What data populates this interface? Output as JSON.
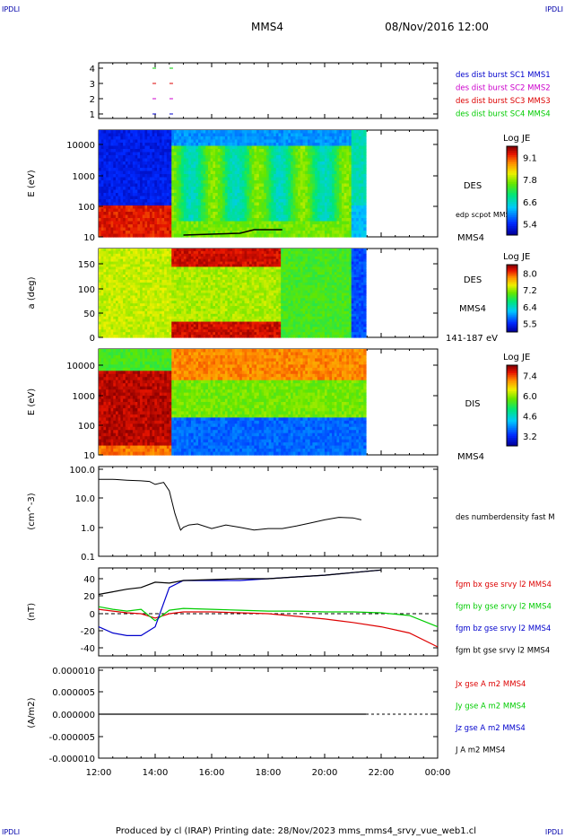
{
  "corner": {
    "tl": "IPDLI",
    "tr": "IPDLI",
    "bl": "IPDLI",
    "br": "IPDLI"
  },
  "header": {
    "spacecraft": "MMS4",
    "date": "08/Nov/2016 12:00"
  },
  "footer": "Produced by cl (IRAP)   Printing date: 28/Nov/2023   mms_mms4_srvy_vue_web1.cl",
  "time_axis": {
    "ticks": [
      "12:00",
      "14:00",
      "16:00",
      "18:00",
      "20:00",
      "22:00",
      "00:00"
    ]
  },
  "colors": {
    "blue": "#0000cc",
    "magenta": "#cc00cc",
    "red": "#dd0000",
    "green": "#00cc00",
    "black": "#000000",
    "dashed": "#000000"
  },
  "chart_data": [
    {
      "type": "scatter",
      "id": "burst",
      "yticks": [
        "4",
        "3",
        "2",
        "1"
      ],
      "legend": [
        {
          "name": "des dist burst SC1 MMS1",
          "color": "#0000cc"
        },
        {
          "name": "des dist burst SC2 MMS2",
          "color": "#cc00cc"
        },
        {
          "name": "des dist burst SC3 MMS3",
          "color": "#dd0000"
        },
        {
          "name": "des dist burst SC4 MMS4",
          "color": "#00cc00"
        }
      ],
      "marks": [
        {
          "sc": 4,
          "t": [
            13.97,
            14.57
          ],
          "color": "#00cc00"
        },
        {
          "sc": 3,
          "t": [
            13.97,
            14.57
          ],
          "color": "#dd0000"
        },
        {
          "sc": 2,
          "t": [
            13.97,
            14.57
          ],
          "color": "#cc00cc"
        },
        {
          "sc": 1,
          "t": [
            13.97,
            14.57
          ],
          "color": "#0000cc"
        }
      ]
    },
    {
      "type": "heatmap",
      "id": "des_energy",
      "ylabel": "E (eV)",
      "yticks": [
        "10000",
        "1000",
        "100",
        "10"
      ],
      "right_label": "DES",
      "overlay_label": "edp scpot MMS4",
      "bottom_label": "MMS4",
      "colorbar": {
        "title": "Log JE",
        "ticks": [
          "9.1",
          "7.8",
          "6.6",
          "5.4"
        ]
      }
    },
    {
      "type": "heatmap",
      "id": "des_pitch",
      "ylabel": "a (deg)",
      "yticks": [
        "150",
        "100",
        "50",
        "0"
      ],
      "right_label": "DES",
      "sub_label": "MMS4",
      "bottom_label": "141-187 eV",
      "colorbar": {
        "title": "Log JE",
        "ticks": [
          "8.0",
          "7.2",
          "6.4",
          "5.5"
        ]
      }
    },
    {
      "type": "heatmap",
      "id": "dis_energy",
      "ylabel": "E (eV)",
      "yticks": [
        "10000",
        "1000",
        "100",
        "10"
      ],
      "right_label": "DIS",
      "bottom_label": "MMS4",
      "colorbar": {
        "title": "Log JE",
        "ticks": [
          "7.4",
          "6.0",
          "4.6",
          "3.2"
        ]
      }
    },
    {
      "type": "line",
      "id": "density",
      "ylabel": "(cm^-3)",
      "yticks": [
        "100.0",
        "10.0",
        "1.0",
        "0.1"
      ],
      "legend": [
        {
          "name": "des numberdensity fast M",
          "color": "#000000"
        }
      ],
      "series": [
        {
          "name": "des numberdensity fast M",
          "x": [
            12.0,
            12.5,
            13.0,
            13.5,
            13.8,
            14.0,
            14.3,
            14.5,
            14.7,
            14.8,
            14.9,
            15.0,
            15.2,
            15.5,
            16.0,
            16.5,
            17.0,
            17.5,
            18.0,
            18.5,
            19.0,
            19.5,
            20.0,
            20.5,
            21.0,
            21.3
          ],
          "values": [
            45,
            45,
            42,
            40,
            38,
            30,
            35,
            18,
            3,
            1.5,
            0.8,
            1.0,
            1.2,
            1.3,
            0.9,
            1.2,
            1.0,
            0.8,
            0.9,
            0.9,
            1.1,
            1.4,
            1.8,
            2.2,
            2.1,
            1.8
          ]
        }
      ]
    },
    {
      "type": "line",
      "id": "fgm",
      "ylabel": "(nT)",
      "yticks": [
        "40",
        "20",
        "0",
        "-20",
        "-40"
      ],
      "ylim": [
        -45,
        50
      ],
      "legend": [
        {
          "name": "fgm bx gse srvy l2 MMS4",
          "color": "#dd0000"
        },
        {
          "name": "fgm by gse srvy l2 MMS4",
          "color": "#00cc00"
        },
        {
          "name": "fgm bz gse srvy l2 MMS4",
          "color": "#0000cc"
        },
        {
          "name": "fgm bt gse srvy l2 MMS4",
          "color": "#000000"
        }
      ],
      "series": [
        {
          "name": "bx",
          "x": [
            12,
            12.5,
            13,
            13.5,
            14,
            14.5,
            15,
            16,
            17,
            18,
            19,
            20,
            21,
            22,
            23,
            24
          ],
          "values": [
            5,
            3,
            1,
            0,
            -5,
            0,
            2,
            2,
            1,
            0,
            -3,
            -6,
            -10,
            -15,
            -22,
            -38
          ]
        },
        {
          "name": "by",
          "x": [
            12,
            12.5,
            13,
            13.5,
            14,
            14.5,
            15,
            16,
            17,
            18,
            19,
            20,
            21,
            22,
            23,
            24
          ],
          "values": [
            8,
            5,
            3,
            5,
            -8,
            4,
            6,
            5,
            4,
            3,
            3,
            2,
            2,
            1,
            -2,
            -15
          ]
        },
        {
          "name": "bz",
          "x": [
            12,
            12.5,
            13,
            13.5,
            14,
            14.5,
            15,
            16,
            17,
            18,
            19,
            20,
            21,
            22,
            23,
            24
          ],
          "values": [
            -15,
            -22,
            -25,
            -25,
            -15,
            30,
            38,
            38,
            38,
            40,
            42,
            44,
            47,
            50,
            null,
            null
          ]
        },
        {
          "name": "bt",
          "x": [
            12,
            12.5,
            13,
            13.5,
            14,
            14.5,
            15,
            16,
            17,
            18,
            19,
            20,
            21,
            22,
            23,
            24
          ],
          "values": [
            22,
            25,
            28,
            30,
            36,
            35,
            38,
            39,
            40,
            40,
            42,
            44,
            47,
            50,
            null,
            null
          ]
        }
      ]
    },
    {
      "type": "line",
      "id": "current",
      "ylabel": "(A/m2)",
      "yticks": [
        "0.000010",
        "0.000005",
        "0.000000",
        "-0.000005",
        "-0.000010"
      ],
      "ylim": [
        -1e-05,
        1e-05
      ],
      "legend": [
        {
          "name": "Jx gse A m2 MMS4",
          "color": "#dd0000"
        },
        {
          "name": "Jy gse A m2 MMS4",
          "color": "#00cc00"
        },
        {
          "name": "Jz gse A m2 MMS4",
          "color": "#0000cc"
        },
        {
          "name": "J A m2 MMS4",
          "color": "#000000"
        }
      ],
      "series": [
        {
          "name": "J",
          "x": [
            12,
            14,
            16,
            18,
            20,
            22,
            24
          ],
          "values": [
            0,
            0,
            0,
            0,
            0,
            0,
            0
          ]
        }
      ]
    }
  ]
}
